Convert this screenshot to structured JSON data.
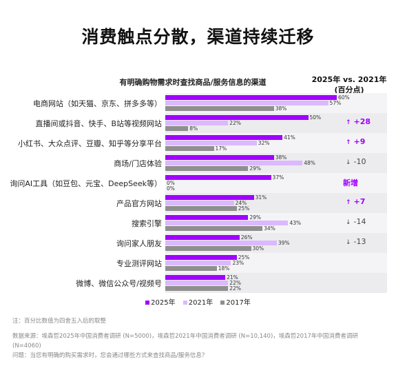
{
  "page": {
    "title": "消费触点分散，渠道持续迁移",
    "change_header_line1": "2025年 vs. 2021年",
    "change_header_line2": "(百分点)",
    "note": "注：百分比数值为四舍五入后的取整",
    "source": "数据来源：埃森哲2025年中国消费者调研 (N=5000)，埃森哲2021年中国消费者调研 (N=10,140)，埃森哲2017年中国消费者调研 (N=4060)",
    "question": "问题：当您有明确的购买需求时，您会通过哪些方式来查找商品/服务信息？"
  },
  "colors": {
    "s2025": "#a100ff",
    "s2021": "#dcb8ff",
    "s2017": "#8f8f8f",
    "up": "#a100ff",
    "down": "#444444",
    "new": "#a100ff"
  },
  "chart_data": {
    "type": "bar",
    "orientation": "horizontal",
    "title": "有明确购物需求时查找商品/服务信息的渠道",
    "xlim": [
      0,
      70
    ],
    "categories": [
      "电商网站（如天猫、京东、拼多多等）",
      "直播间或抖音、快手、B站等视频网站",
      "小红书、大众点评、豆瓣、知乎等分享平台",
      "商场/门店体验",
      "询问AI工具（如豆包、元宝、DeepSeek等）",
      "产品官方网站",
      "搜索引擎",
      "询问家人朋友",
      "专业测评网站",
      "微博、微信公众号/视频号"
    ],
    "series": [
      {
        "name": "2025年",
        "values": [
          60,
          50,
          41,
          38,
          37,
          31,
          29,
          26,
          25,
          21
        ],
        "labels": [
          "60%",
          "50%",
          "41%",
          "38%",
          "37%",
          "31%",
          "29%",
          "26%",
          "25%",
          "21%"
        ]
      },
      {
        "name": "2021年",
        "values": [
          57,
          22,
          32,
          48,
          0,
          24,
          43,
          39,
          23,
          22
        ],
        "labels": [
          "57%",
          "22%",
          "32%",
          "48%",
          "0%",
          "24%",
          "43%",
          "39%",
          "23%",
          "22%"
        ]
      },
      {
        "name": "2017年",
        "values": [
          38,
          8,
          17,
          29,
          0,
          25,
          34,
          30,
          18,
          22
        ],
        "labels": [
          "38%",
          "8%",
          "17%",
          "29%",
          "0%",
          "25%",
          "34%",
          "30%",
          "18%",
          "22%"
        ]
      }
    ],
    "changes": [
      {
        "text": "",
        "dir": "none"
      },
      {
        "text": "+28",
        "dir": "up"
      },
      {
        "text": "+9",
        "dir": "up"
      },
      {
        "text": "-10",
        "dir": "down"
      },
      {
        "text": "新增",
        "dir": "new"
      },
      {
        "text": "+7",
        "dir": "up"
      },
      {
        "text": "-14",
        "dir": "down"
      },
      {
        "text": "-13",
        "dir": "down"
      },
      {
        "text": "",
        "dir": "none"
      },
      {
        "text": "",
        "dir": "none"
      }
    ],
    "legend": [
      "2025年",
      "2021年",
      "2017年"
    ],
    "legend_position": "bottom"
  }
}
